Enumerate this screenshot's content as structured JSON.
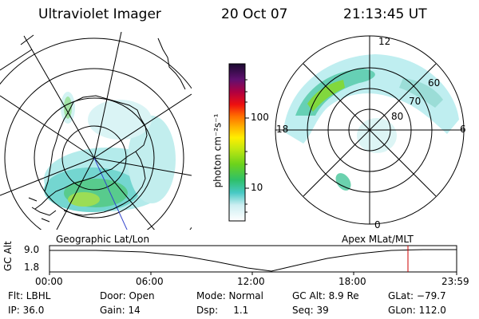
{
  "header": {
    "instrument": "Ultraviolet Imager",
    "date": "20 Oct 07",
    "time": "21:13:45 UT"
  },
  "left_map": {
    "caption": "Geographic Lat/Lon"
  },
  "right_map": {
    "caption": "Apex MLat/MLT",
    "mlt_labels": [
      "12",
      "18",
      "6",
      "0"
    ],
    "lat_labels": [
      "60",
      "70",
      "80"
    ]
  },
  "colorbar": {
    "unit_label": "photon cm⁻²s⁻¹",
    "ticks": [
      "100",
      "10"
    ]
  },
  "altitude_plot": {
    "ylabel": "GC Alt",
    "yticks": [
      "9.0",
      "1.8"
    ],
    "xticks": [
      "00:00",
      "06:00",
      "12:00",
      "18:00",
      "23:59"
    ],
    "marker_color": "#cc0000"
  },
  "info": {
    "flt": "Flt: LBHL",
    "ip": "IP: 36.0",
    "door": "Door: Open",
    "gain": "Gain: 14",
    "mode": "Mode: Normal",
    "dsp": "Dsp:     1.1",
    "gcalt": "GC Alt: 8.9 Re",
    "seq": "Seq: 39",
    "glat": "GLat: −79.7",
    "glon": "GLon: 112.0"
  }
}
